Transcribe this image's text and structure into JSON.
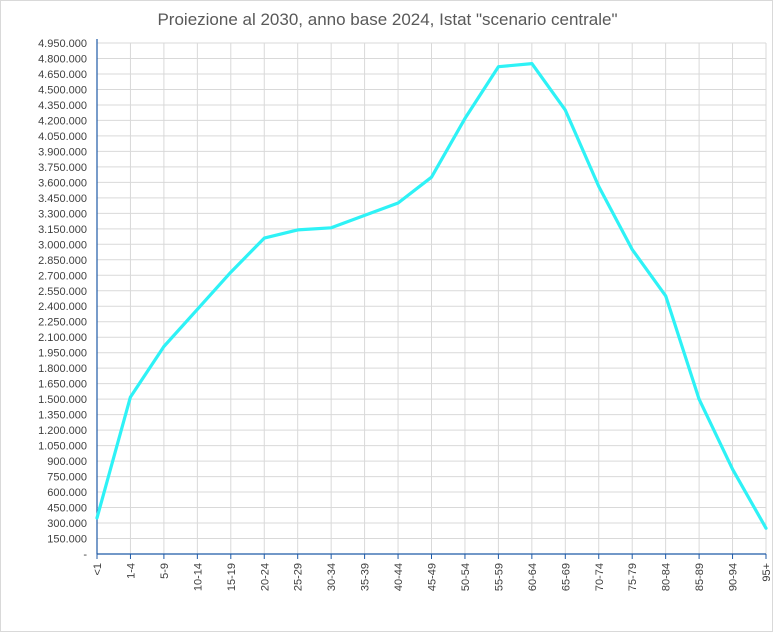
{
  "chart_data": {
    "type": "line",
    "title": "Proiezione al 2030, anno base 2024, Istat \"scenario centrale\"",
    "xlabel": "",
    "ylabel": "",
    "categories": [
      "<1",
      "1-4",
      "5-9",
      "10-14",
      "15-19",
      "20-24",
      "25-29",
      "30-34",
      "35-39",
      "40-44",
      "45-49",
      "50-54",
      "55-59",
      "60-64",
      "65-69",
      "70-74",
      "75-79",
      "80-84",
      "85-89",
      "90-94",
      "95+"
    ],
    "series": [
      {
        "values": [
          350000,
          1520000,
          2010000,
          2370000,
          2730000,
          3060000,
          3140000,
          3160000,
          3280000,
          3400000,
          3650000,
          4220000,
          4720000,
          4750000,
          4300000,
          3560000,
          2950000,
          2500000,
          1500000,
          820000,
          250000
        ]
      }
    ],
    "ylim": [
      0,
      4950000
    ],
    "ytick_step": 150000,
    "ytick_labels": [
      "-",
      "150.000",
      "300.000",
      "450.000",
      "600.000",
      "750.000",
      "900.000",
      "1.050.000",
      "1.200.000",
      "1.350.000",
      "1.500.000",
      "1.650.000",
      "1.800.000",
      "1.950.000",
      "2.100.000",
      "2.250.000",
      "2.400.000",
      "2.550.000",
      "2.700.000",
      "2.850.000",
      "3.000.000",
      "3.150.000",
      "3.300.000",
      "3.450.000",
      "3.600.000",
      "3.750.000",
      "3.900.000",
      "4.050.000",
      "4.200.000",
      "4.350.000",
      "4.500.000",
      "4.650.000",
      "4.800.000",
      "4.950.000"
    ],
    "grid": true,
    "legend": "none",
    "colors": {
      "line": "#2ef2f6",
      "grid": "#d9d9d9",
      "axis": "#1f5aa6",
      "tick_text": "#404040",
      "title": "#595959"
    }
  }
}
